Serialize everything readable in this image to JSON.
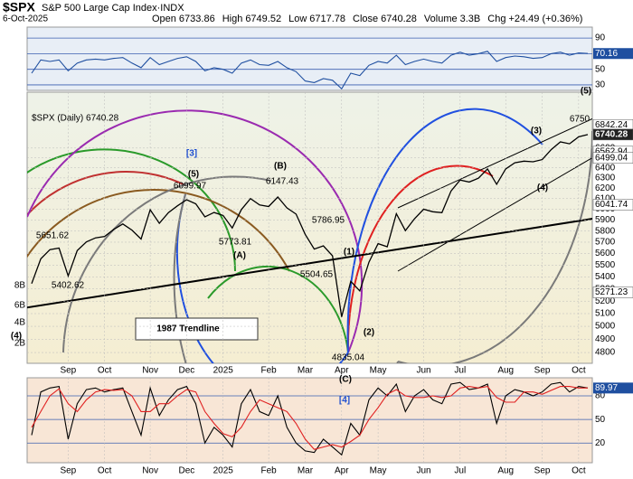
{
  "header": {
    "symbol": "$SPX",
    "name": "S&P 500 Large Cap Index·INDX",
    "date": "6-Oct-2025",
    "fields": [
      {
        "label": "Open",
        "value": "6733.86"
      },
      {
        "label": "High",
        "value": "6749.52"
      },
      {
        "label": "Low",
        "value": "6717.78"
      },
      {
        "label": "Close",
        "value": "6740.28"
      },
      {
        "label": "Volume",
        "value": "3.3B"
      },
      {
        "label": "Chg",
        "value": "+24.49 (+0.36%)"
      }
    ]
  },
  "chart_data": [
    {
      "type": "line",
      "ylim": [
        23,
        104
      ],
      "yticks": [
        30,
        50,
        70,
        90
      ],
      "grid": true,
      "series": [
        {
          "color": "#1f4fa0",
          "values": [
            45,
            62,
            60,
            62,
            48,
            58,
            62,
            63,
            62,
            64,
            65,
            58,
            52,
            65,
            56,
            60,
            64,
            66,
            60,
            48,
            52,
            50,
            45,
            58,
            62,
            56,
            55,
            60,
            52,
            47,
            35,
            33,
            38,
            36,
            25,
            45,
            42,
            55,
            60,
            58,
            68,
            56,
            60,
            63,
            60,
            58,
            68,
            72,
            68,
            70,
            73,
            60,
            65,
            67,
            66,
            64,
            65,
            70,
            72,
            68,
            71,
            70.16
          ]
        }
      ]
    },
    {
      "type": "line",
      "log_scale": true,
      "ylim": [
        4720,
        7200
      ],
      "yticks": [
        4800,
        4900,
        5000,
        5100,
        5200,
        5300,
        5400,
        5500,
        5600,
        5700,
        5800,
        5900,
        6000,
        6100,
        6200,
        6300,
        6400,
        6500,
        6600
      ],
      "categories": [
        null,
        null,
        null,
        null,
        "Sep",
        null,
        null,
        null,
        "Oct",
        null,
        null,
        null,
        null,
        "Nov",
        null,
        null,
        null,
        "Dec",
        null,
        null,
        null,
        "2025",
        null,
        null,
        null,
        null,
        "Feb",
        null,
        null,
        null,
        "Mar",
        null,
        null,
        null,
        "Apr",
        null,
        null,
        null,
        "May",
        null,
        null,
        null,
        null,
        "Jun",
        null,
        null,
        null,
        "Jul",
        null,
        null,
        null,
        null,
        "Aug",
        null,
        null,
        null,
        "Sep",
        null,
        null,
        null,
        "Oct",
        null
      ],
      "series": [
        {
          "name": "$SPX (Daily) 6740.28",
          "color": "#000000",
          "values": [
            5344,
            5554,
            5634,
            5648,
            5408,
            5626,
            5702,
            5738,
            5751,
            5815,
            5864,
            5808,
            5728,
            5995,
            5870,
            5969,
            6032,
            6090,
            6051,
            5930,
            5970,
            5942,
            5827,
            5997,
            6101,
            6040,
            6026,
            6115,
            6013,
            5955,
            5770,
            5639,
            5668,
            5581,
            5074,
            5363,
            5283,
            5525,
            5687,
            5660,
            5958,
            5803,
            5912,
            6000,
            5977,
            5968,
            6173,
            6279,
            6260,
            6297,
            6389,
            6238,
            6389,
            6450,
            6467,
            6460,
            6482,
            6584,
            6664,
            6644,
            6716,
            6740.28
          ]
        }
      ],
      "overlay_levels": [
        6842.24,
        6740.28,
        6562.94,
        6499.04,
        6041.74,
        5271.23
      ],
      "annotations": [
        "(5)",
        "6750",
        "(3)",
        "(4)",
        "[3]",
        "(5)",
        "6099.97",
        "(B)",
        "6147.43",
        "5651.62",
        "5402.62",
        "5773.81",
        "(A)",
        "5786.95",
        "(1)",
        "5504.65",
        "1987 Trendline",
        "(2)",
        "4835.04",
        "(C)",
        "[4]",
        "(4)",
        "8B",
        "6B",
        "4B",
        "2B"
      ]
    },
    {
      "type": "line",
      "ylim": [
        -5,
        103
      ],
      "yticks": [
        20,
        50,
        80
      ],
      "grid": true,
      "categories": [
        null,
        null,
        null,
        null,
        "Sep",
        null,
        null,
        null,
        "Oct",
        null,
        null,
        null,
        null,
        "Nov",
        null,
        null,
        null,
        "Dec",
        null,
        null,
        null,
        "2025",
        null,
        null,
        null,
        null,
        "Feb",
        null,
        null,
        null,
        "Mar",
        null,
        null,
        null,
        "Apr",
        null,
        null,
        null,
        "May",
        null,
        null,
        null,
        null,
        "Jun",
        null,
        null,
        null,
        "Jul",
        null,
        null,
        null,
        null,
        "Aug",
        null,
        null,
        null,
        "Sep",
        null,
        null,
        null,
        "Oct",
        null
      ],
      "series": [
        {
          "color": "#000000",
          "values": [
            30,
            85,
            90,
            92,
            25,
            70,
            88,
            90,
            85,
            88,
            90,
            60,
            30,
            90,
            55,
            75,
            88,
            92,
            70,
            20,
            40,
            30,
            15,
            70,
            88,
            60,
            55,
            80,
            40,
            20,
            10,
            8,
            25,
            15,
            5,
            45,
            30,
            75,
            90,
            80,
            95,
            60,
            80,
            88,
            75,
            70,
            95,
            97,
            88,
            90,
            95,
            45,
            80,
            88,
            85,
            80,
            85,
            95,
            97,
            85,
            92,
            89.97
          ]
        },
        {
          "color": "#e02020",
          "values": [
            40,
            60,
            80,
            89,
            70,
            60,
            75,
            85,
            88,
            87,
            88,
            80,
            60,
            60,
            70,
            70,
            80,
            88,
            85,
            60,
            45,
            32,
            28,
            40,
            60,
            75,
            70,
            65,
            60,
            45,
            25,
            12,
            15,
            18,
            15,
            22,
            30,
            50,
            65,
            82,
            88,
            80,
            78,
            78,
            80,
            78,
            80,
            90,
            92,
            90,
            92,
            78,
            72,
            72,
            85,
            85,
            82,
            87,
            92,
            92,
            90,
            90
          ]
        }
      ]
    }
  ]
}
